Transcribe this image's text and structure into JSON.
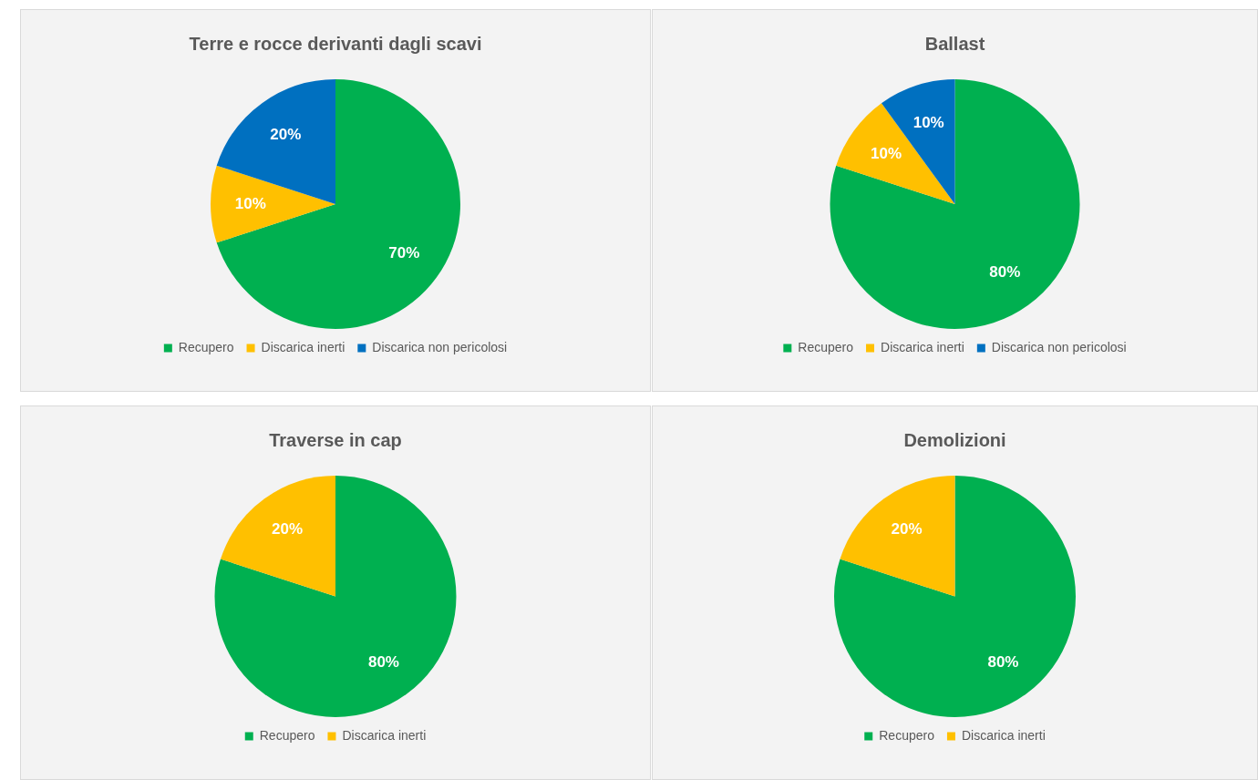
{
  "chart_data": [
    {
      "type": "pie",
      "title": "Terre e rocce derivanti dagli scavi",
      "categories": [
        "Recupero",
        "Discarica inerti",
        "Discarica non pericolosi"
      ],
      "values": [
        70,
        10,
        20
      ],
      "colors": [
        "#00b050",
        "#ffc000",
        "#0070c0"
      ],
      "value_labels": [
        "70%",
        "10%",
        "20%"
      ],
      "legend": "bottom"
    },
    {
      "type": "pie",
      "title": "Ballast",
      "categories": [
        "Recupero",
        "Discarica inerti",
        "Discarica non pericolosi"
      ],
      "values": [
        80,
        10,
        10
      ],
      "colors": [
        "#00b050",
        "#ffc000",
        "#0070c0"
      ],
      "value_labels": [
        "80%",
        "10%",
        "10%"
      ],
      "legend": "bottom"
    },
    {
      "type": "pie",
      "title": "Traverse in cap",
      "categories": [
        "Recupero",
        "Discarica inerti"
      ],
      "values": [
        80,
        20
      ],
      "colors": [
        "#00b050",
        "#ffc000"
      ],
      "value_labels": [
        "80%",
        "20%"
      ],
      "legend": "bottom"
    },
    {
      "type": "pie",
      "title": "Demolizioni",
      "categories": [
        "Recupero",
        "Discarica inerti"
      ],
      "values": [
        80,
        20
      ],
      "colors": [
        "#00b050",
        "#ffc000"
      ],
      "value_labels": [
        "80%",
        "20%"
      ],
      "legend": "bottom"
    }
  ]
}
